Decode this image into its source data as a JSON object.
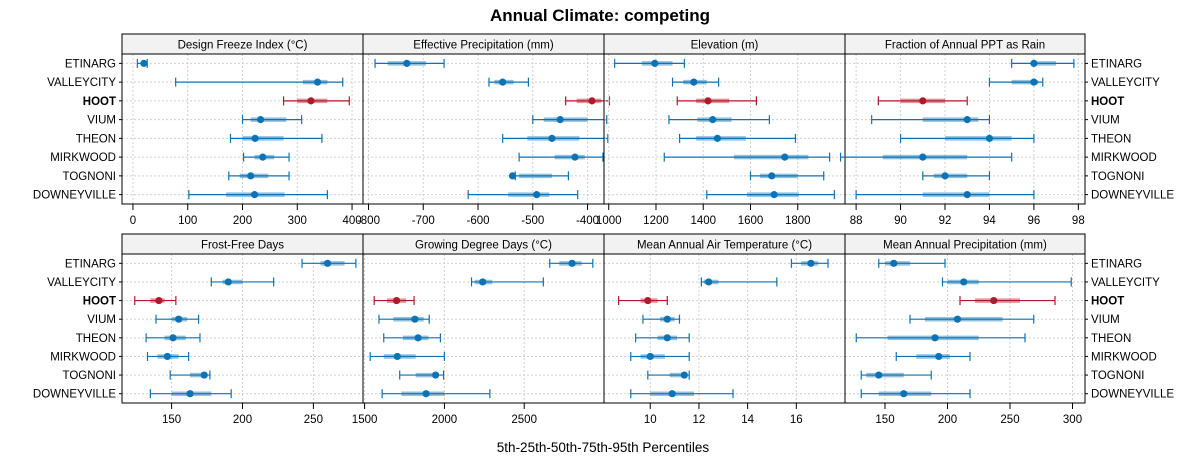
{
  "chart_data": {
    "type": "dot-range",
    "title": "Annual Climate: competing",
    "xlabel": "5th-25th-50th-75th-95th Percentiles",
    "colors": {
      "default": "#0E73B4",
      "highlight": "#B2182B"
    },
    "highlight": "HOOT",
    "categories": [
      "ETINARG",
      "VALLEYCITY",
      "HOOT",
      "VIUM",
      "THEON",
      "MIRKWOOD",
      "TOGNONI",
      "DOWNEYVILLE"
    ],
    "panels": [
      {
        "title": "Design Freeze Index (°C)",
        "xlim": [
          -20,
          420
        ],
        "ticks": [
          0,
          100,
          200,
          300,
          400
        ],
        "stats": {
          "ETINARG": [
            8,
            15,
            20,
            25,
            26
          ],
          "VALLEYCITY": [
            78,
            310,
            337,
            355,
            383
          ],
          "HOOT": [
            275,
            300,
            325,
            355,
            395
          ],
          "VIUM": [
            200,
            215,
            233,
            280,
            308
          ],
          "THEON": [
            178,
            200,
            223,
            275,
            345
          ],
          "MIRKWOOD": [
            202,
            222,
            237,
            258,
            285
          ],
          "TOGNONI": [
            175,
            195,
            215,
            247,
            285
          ],
          "DOWNEYVILLE": [
            102,
            170,
            222,
            277,
            355
          ]
        }
      },
      {
        "title": "Effective Precipitation (mm)",
        "xlim": [
          -810,
          -370
        ],
        "ticks": [
          -800,
          -700,
          -600,
          -500,
          -400
        ],
        "stats": {
          "ETINARG": [
            -788,
            -765,
            -730,
            -695,
            -662
          ],
          "VALLEYCITY": [
            -580,
            -570,
            -555,
            -535,
            -508
          ],
          "HOOT": [
            -440,
            -420,
            -392,
            -375,
            -360
          ],
          "VIUM": [
            -500,
            -480,
            -450,
            -400,
            -365
          ],
          "THEON": [
            -555,
            -510,
            -465,
            -415,
            -363
          ],
          "MIRKWOOD": [
            -525,
            -460,
            -423,
            -405,
            -372
          ],
          "TOGNONI": [
            -532,
            -525,
            -537,
            -465,
            -435
          ],
          "DOWNEYVILLE": [
            -618,
            -545,
            -493,
            -470,
            -418
          ]
        }
      },
      {
        "title": "Elevation (m)",
        "xlim": [
          980,
          2000
        ],
        "ticks": [
          1000,
          1200,
          1400,
          1600,
          1800
        ],
        "stats": {
          "ETINARG": [
            1025,
            1140,
            1195,
            1270,
            1320
          ],
          "VALLEYCITY": [
            1270,
            1315,
            1360,
            1415,
            1465
          ],
          "HOOT": [
            1290,
            1370,
            1420,
            1510,
            1625
          ],
          "VIUM": [
            1255,
            1375,
            1440,
            1520,
            1680
          ],
          "THEON": [
            1300,
            1370,
            1460,
            1580,
            1790
          ],
          "MIRKWOOD": [
            1235,
            1530,
            1745,
            1845,
            1935
          ],
          "TOGNONI": [
            1600,
            1640,
            1690,
            1800,
            1910
          ],
          "DOWNEYVILLE": [
            1415,
            1585,
            1700,
            1805,
            1955
          ]
        }
      },
      {
        "title": "Fraction of Annual PPT as Rain",
        "xlim": [
          87.5,
          98.3
        ],
        "ticks": [
          88,
          90,
          92,
          94,
          96,
          98
        ],
        "stats": {
          "ETINARG": [
            95,
            96,
            96,
            97,
            97.8
          ],
          "VALLEYCITY": [
            94,
            95,
            96,
            96.2,
            96.4
          ],
          "HOOT": [
            89,
            90,
            91,
            92,
            93
          ],
          "VIUM": [
            88.7,
            91,
            93,
            93.5,
            94
          ],
          "THEON": [
            90,
            92,
            94,
            95,
            96
          ],
          "MIRKWOOD": [
            87.3,
            89.2,
            91,
            93,
            95
          ],
          "TOGNONI": [
            91,
            91.5,
            92,
            93,
            94
          ],
          "DOWNEYVILLE": [
            88,
            91,
            93,
            94,
            96
          ]
        }
      },
      {
        "title": "Frost-Free Days",
        "xlim": [
          115,
          285
        ],
        "ticks": [
          150,
          200,
          250
        ],
        "stats": {
          "ETINARG": [
            242,
            255,
            260,
            272,
            280
          ],
          "VALLEYCITY": [
            178,
            186,
            190,
            200,
            222
          ],
          "HOOT": [
            124,
            135,
            141,
            145,
            153
          ],
          "VIUM": [
            139,
            150,
            155,
            161,
            169
          ],
          "THEON": [
            132,
            145,
            151,
            160,
            170
          ],
          "MIRKWOOD": [
            133,
            140,
            147,
            155,
            162
          ],
          "TOGNONI": [
            149,
            163,
            173,
            173,
            177
          ],
          "DOWNEYVILLE": [
            135,
            150,
            163,
            178,
            192
          ]
        }
      },
      {
        "title": "Growing Degree Days (°C)",
        "xlim": [
          1490,
          3000
        ],
        "ticks": [
          1500,
          2000,
          2500
        ],
        "stats": {
          "ETINARG": [
            2660,
            2720,
            2800,
            2860,
            2930
          ],
          "VALLEYCITY": [
            2170,
            2190,
            2240,
            2300,
            2620
          ],
          "HOOT": [
            1560,
            1640,
            1700,
            1760,
            1810
          ],
          "VIUM": [
            1590,
            1680,
            1815,
            1870,
            1905
          ],
          "THEON": [
            1620,
            1740,
            1835,
            1900,
            1975
          ],
          "MIRKWOOD": [
            1535,
            1620,
            1705,
            1820,
            2000
          ],
          "TOGNONI": [
            1720,
            1820,
            1945,
            1960,
            1995
          ],
          "DOWNEYVILLE": [
            1610,
            1730,
            1885,
            2000,
            2285
          ]
        }
      },
      {
        "title": "Mean Annual Air Temperature (°C)",
        "xlim": [
          8.1,
          18.0
        ],
        "ticks": [
          10,
          12,
          14,
          16
        ],
        "stats": {
          "ETINARG": [
            15.8,
            16.2,
            16.6,
            16.9,
            17.3
          ],
          "VALLEYCITY": [
            12.1,
            12.2,
            12.4,
            12.8,
            15.2
          ],
          "HOOT": [
            8.7,
            9.6,
            9.9,
            10.3,
            10.7
          ],
          "VIUM": [
            9.7,
            10.4,
            10.7,
            11.0,
            11.2
          ],
          "THEON": [
            9.4,
            10.3,
            10.7,
            11.1,
            11.6
          ],
          "MIRKWOOD": [
            9.2,
            9.6,
            10.0,
            10.6,
            11.6
          ],
          "TOGNONI": [
            9.9,
            10.8,
            11.4,
            11.4,
            11.6
          ],
          "DOWNEYVILLE": [
            9.2,
            10.0,
            10.9,
            11.8,
            13.4
          ]
        }
      },
      {
        "title": "Mean Annual Precipitation (mm)",
        "xlim": [
          118,
          310
        ],
        "ticks": [
          150,
          200,
          250,
          300
        ],
        "stats": {
          "ETINARG": [
            145,
            150,
            157,
            170,
            198
          ],
          "VALLEYCITY": [
            196,
            200,
            213,
            225,
            299
          ],
          "HOOT": [
            210,
            222,
            237,
            258,
            286
          ],
          "VIUM": [
            170,
            182,
            208,
            244,
            269
          ],
          "THEON": [
            127,
            152,
            190,
            225,
            262
          ],
          "MIRKWOOD": [
            159,
            175,
            193,
            202,
            218
          ],
          "TOGNONI": [
            131,
            135,
            145,
            165,
            187
          ],
          "DOWNEYVILLE": [
            131,
            145,
            165,
            187,
            218
          ]
        }
      }
    ]
  }
}
